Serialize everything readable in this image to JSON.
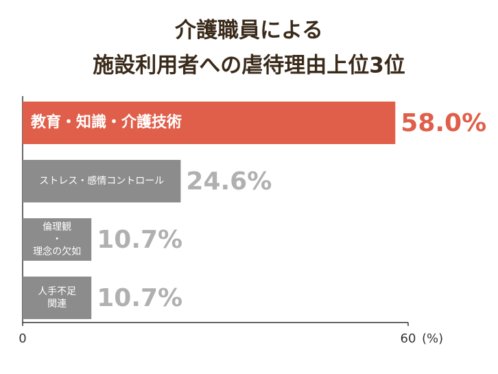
{
  "chart_data": {
    "type": "bar",
    "orientation": "horizontal",
    "title": [
      "介護職員による",
      "施設利用者への虐待理由上位3位"
    ],
    "categories": [
      [
        "教育・知識・介護技術"
      ],
      [
        "ストレス・感情コントロール"
      ],
      [
        "倫理観",
        "・",
        "理念の欠如"
      ],
      [
        "人手不足",
        "関連"
      ]
    ],
    "values": [
      58.0,
      24.6,
      10.7,
      10.7
    ],
    "value_labels": [
      "58.0%",
      "24.6%",
      "10.7%",
      "10.7%"
    ],
    "colors": [
      "#e05f4a",
      "#8c8c8c",
      "#8c8c8c",
      "#8c8c8c"
    ],
    "value_label_colors": [
      "#e05f4a",
      "#b0b0b0",
      "#b0b0b0",
      "#b0b0b0"
    ],
    "xlim": [
      0,
      60
    ],
    "xticks": [
      0,
      60
    ],
    "x_unit": "(%)"
  }
}
